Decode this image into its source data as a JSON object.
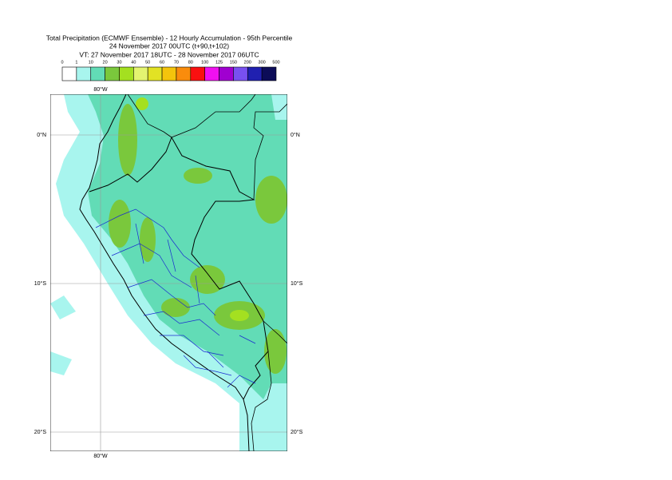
{
  "header": {
    "title": "Total Precipitation (ECMWF Ensemble) - 12 Hourly Accumulation - 95th Percentile",
    "subtitle": "24 November 2017 00UTC (t+90,t+102)",
    "valid_time": "VT: 27 November 2017 18UTC - 28 November 2017 06UTC"
  },
  "legend": {
    "labels": [
      0,
      1,
      10,
      20,
      30,
      40,
      50,
      60,
      70,
      80,
      100,
      125,
      150,
      200,
      300,
      500
    ],
    "colors": [
      "#ffffff",
      "#a8f5ee",
      "#62dcb6",
      "#7ac83c",
      "#a4e020",
      "#e4f470",
      "#e2e224",
      "#f4c40c",
      "#fa8c0c",
      "#fa1010",
      "#f010f0",
      "#a000d0",
      "#7850f0",
      "#2020b0",
      "#0c0c58"
    ]
  },
  "map": {
    "lat_labels": [
      "0°N",
      "10°S",
      "20°S"
    ],
    "lon_label": "80°W"
  }
}
